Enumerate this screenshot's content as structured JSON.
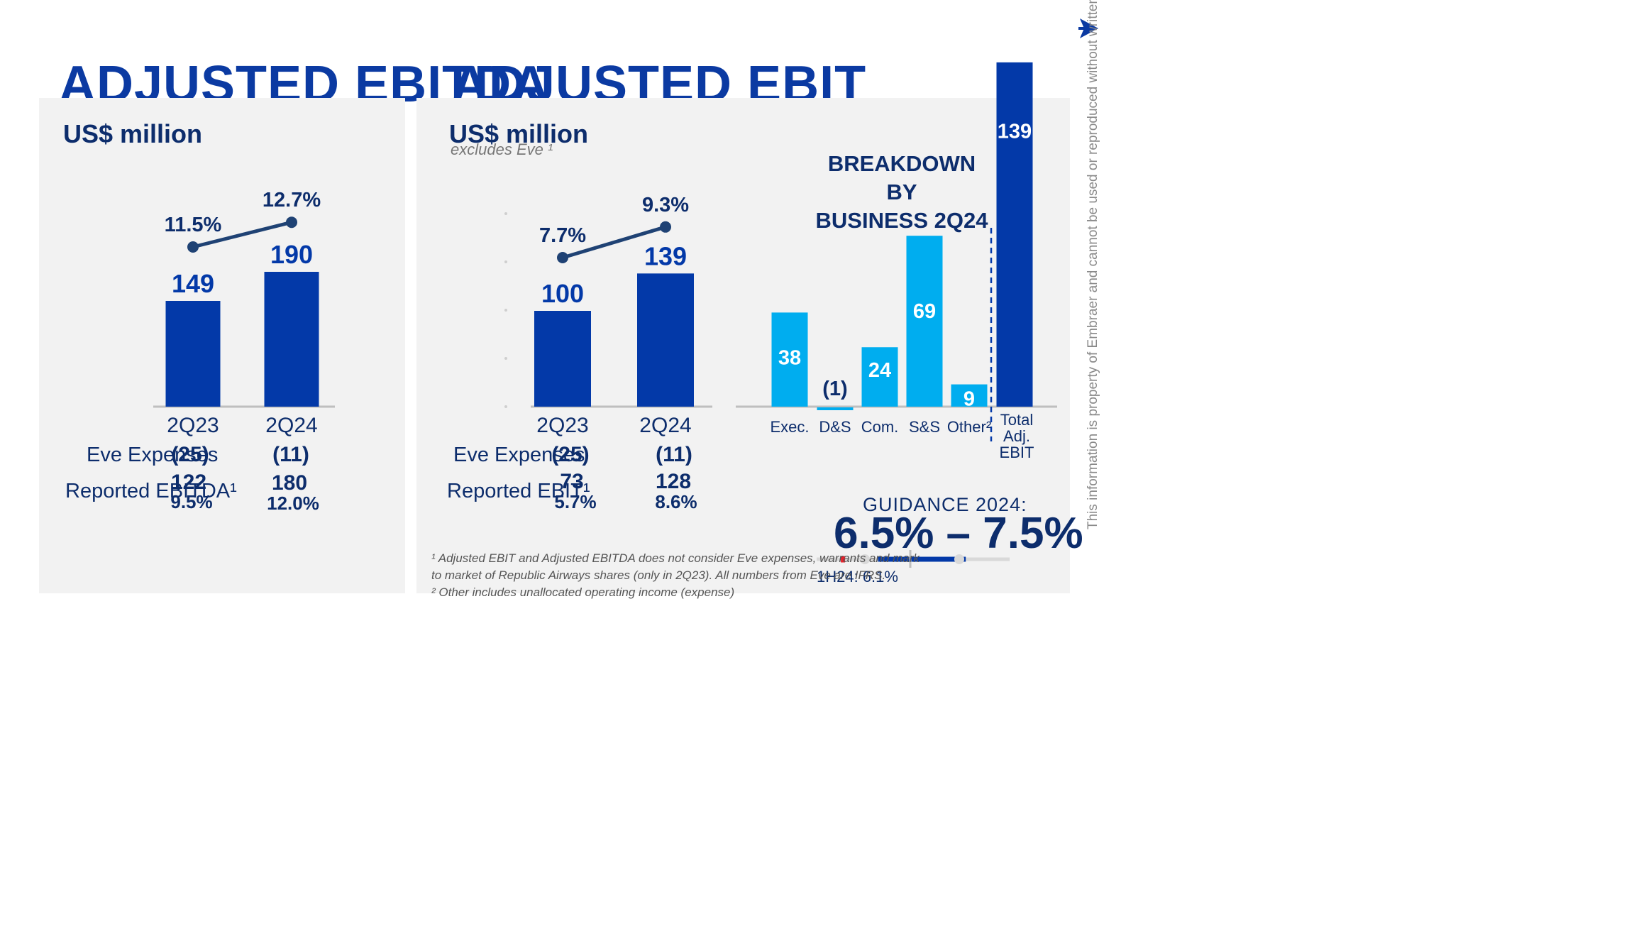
{
  "titles": {
    "ebitda": "ADJUSTED EBITDA",
    "ebit": "ADJUSTED EBIT"
  },
  "logo_icon": "arrow-logo-icon",
  "side_note": "This information is property of Embraer and cannot be used or reproduced without written permission.",
  "colors": {
    "title": "#0b3aa2",
    "bar_dark": "#0339a8",
    "bar_light": "#00adef",
    "text": "#0d2d6c",
    "margin_line": "#1f4274",
    "panel": "#f2f2f2"
  },
  "ebitda": {
    "unit": "US$ million",
    "table": {
      "eve_label": "Eve Expenses",
      "eve_values": [
        "(25)",
        "(11)"
      ],
      "reported_label": "Reported EBITDA¹",
      "reported_values": [
        "122",
        "180"
      ],
      "reported_margins": [
        "9.5%",
        "12.0%"
      ]
    }
  },
  "ebit": {
    "unit": "US$ million",
    "sub": "excludes Eve ¹",
    "table": {
      "eve_label": "Eve Expenses",
      "eve_values": [
        "(25)",
        "(11)"
      ],
      "reported_label": "Reported EBIT¹",
      "reported_values": [
        "73",
        "128"
      ],
      "reported_margins": [
        "5.7%",
        "8.6%"
      ]
    }
  },
  "breakdown": {
    "title_line1": "BREAKDOWN BY",
    "title_line2": "BUSINESS 2Q24"
  },
  "guidance": {
    "label": "GUIDANCE 2024:",
    "value": "6.5% – 7.5%",
    "actual_label": "1H24: 6.1%",
    "actual": 6.1,
    "range_low": 6.5,
    "range_high": 7.5
  },
  "footnotes": [
    "¹ Adjusted EBIT and Adjusted EBITDA does not consider Eve expenses, warrants and mark",
    "to market of Republic Airways shares (only in 2Q23). All numbers from Eve are IFRS.",
    "² Other includes unallocated operating income (expense)"
  ],
  "chart_data": [
    {
      "type": "bar",
      "categories": [
        "2Q23",
        "2Q24"
      ],
      "values": [
        149,
        190
      ],
      "value_labels": [
        "149",
        "190"
      ],
      "line": {
        "values": [
          11.5,
          12.7
        ],
        "labels": [
          "11.5%",
          "12.7%"
        ]
      }
    },
    {
      "type": "bar",
      "categories": [
        "2Q23",
        "2Q24"
      ],
      "values": [
        100,
        139
      ],
      "value_labels": [
        "100",
        "139"
      ],
      "line": {
        "values": [
          7.7,
          9.3
        ],
        "labels": [
          "7.7%",
          "9.3%"
        ]
      }
    },
    {
      "type": "bar",
      "categories": [
        "Exec.",
        "D&S",
        "Com.",
        "S&S",
        "Other²",
        "Total Adj. EBIT"
      ],
      "values": [
        38,
        -1,
        24,
        69,
        9,
        139
      ],
      "value_labels": [
        "38",
        "(1)",
        "24",
        "69",
        "9",
        "139"
      ]
    }
  ]
}
